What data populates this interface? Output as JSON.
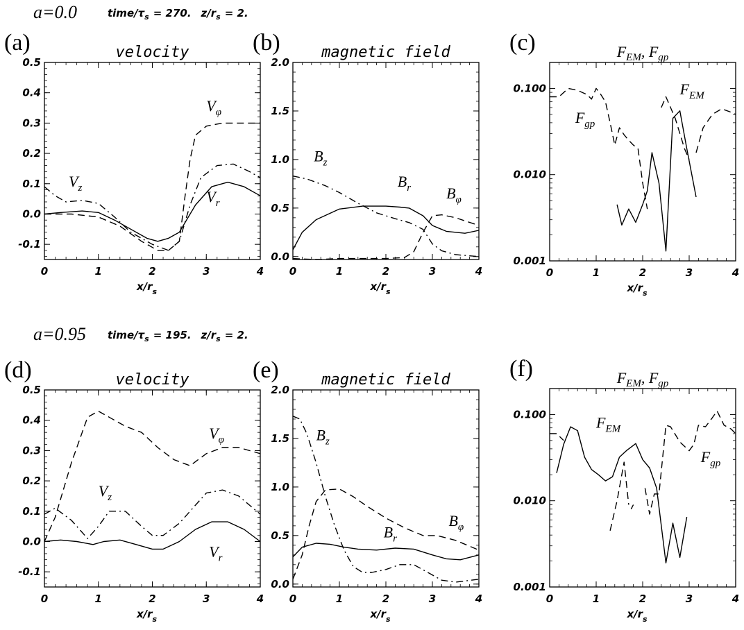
{
  "rows": [
    {
      "a_label": "a=0.0",
      "time_label": "time/τ",
      "time_value": "= 270.",
      "z_label": "z/r",
      "z_value": "= 2.",
      "sub_s": "s"
    },
    {
      "a_label": "a=0.95",
      "time_label": "time/τ",
      "time_value": "= 195.",
      "z_label": "z/r",
      "z_value": "= 2.",
      "sub_s": "s"
    }
  ],
  "chart_data": [
    {
      "panel": "(a)",
      "type": "line",
      "title": "velocity",
      "xlabel": "x/r",
      "xlabel_sub": "s",
      "xlim": [
        0,
        4
      ],
      "ylim": [
        -0.15,
        0.5
      ],
      "yscale": "linear",
      "xticks": [
        0,
        1,
        2,
        3,
        4
      ],
      "xtick_labels": [
        "0",
        "1",
        "2",
        "3",
        "4"
      ],
      "yticks": [
        -0.1,
        0,
        0.1,
        0.2,
        0.3,
        0.4,
        0.5
      ],
      "ytick_labels": [
        "-0.1",
        "0.0",
        "0.1",
        "0.2",
        "0.3",
        "0.4",
        "0.5"
      ],
      "series": [
        {
          "name": "V_φ",
          "style": "dashed",
          "x": [
            0,
            0.5,
            1.0,
            1.4,
            1.8,
            2.1,
            2.3,
            2.5,
            2.6,
            2.7,
            2.8,
            3.0,
            3.3,
            3.6,
            4.0
          ],
          "y": [
            0.0,
            0.0,
            -0.01,
            -0.04,
            -0.09,
            -0.12,
            -0.12,
            -0.09,
            0.05,
            0.18,
            0.26,
            0.29,
            0.3,
            0.3,
            0.3
          ]
        },
        {
          "name": "V_z",
          "style": "dashdot",
          "x": [
            0,
            0.2,
            0.4,
            0.7,
            1.0,
            1.3,
            1.6,
            2.0,
            2.3,
            2.5,
            2.7,
            2.9,
            3.2,
            3.5,
            3.8,
            4.0
          ],
          "y": [
            0.09,
            0.06,
            0.04,
            0.045,
            0.035,
            -0.01,
            -0.06,
            -0.1,
            -0.12,
            -0.09,
            0.03,
            0.12,
            0.16,
            0.165,
            0.14,
            0.12
          ]
        },
        {
          "name": "V_r",
          "style": "solid",
          "x": [
            0,
            0.3,
            0.7,
            1.0,
            1.3,
            1.6,
            1.9,
            2.1,
            2.3,
            2.5,
            2.8,
            3.1,
            3.4,
            3.7,
            4.0
          ],
          "y": [
            0.0,
            0.005,
            0.01,
            0.005,
            -0.02,
            -0.05,
            -0.08,
            -0.09,
            -0.08,
            -0.06,
            0.03,
            0.09,
            0.105,
            0.09,
            0.06
          ]
        }
      ],
      "annotations": [
        {
          "main": "V",
          "sub": "φ",
          "x": 3.0,
          "y": 0.34
        },
        {
          "main": "V",
          "sub": "z",
          "x": 0.45,
          "y": 0.09
        },
        {
          "main": "V",
          "sub": "r",
          "x": 3.0,
          "y": 0.04
        }
      ]
    },
    {
      "panel": "(b)",
      "type": "line",
      "title": "magnetic field",
      "xlabel": "x/r",
      "xlabel_sub": "s",
      "xlim": [
        0,
        4
      ],
      "ylim": [
        -0.03,
        2.0
      ],
      "yscale": "linear",
      "xticks": [
        0,
        1,
        2,
        3,
        4
      ],
      "xtick_labels": [
        "0",
        "1",
        "2",
        "3",
        "4"
      ],
      "yticks": [
        0,
        0.5,
        1.0,
        1.5,
        2.0
      ],
      "ytick_labels": [
        "0.0",
        "0.5",
        "1.0",
        "1.5",
        "2.0"
      ],
      "series": [
        {
          "name": "B_z",
          "style": "dashdot",
          "x": [
            0,
            0.3,
            0.7,
            1.0,
            1.4,
            1.8,
            2.2,
            2.5,
            2.8,
            3.0,
            3.2,
            3.5,
            4.0
          ],
          "y": [
            0.83,
            0.8,
            0.73,
            0.66,
            0.55,
            0.45,
            0.39,
            0.35,
            0.28,
            0.13,
            0.06,
            0.02,
            0.0
          ]
        },
        {
          "name": "B_r",
          "style": "solid",
          "x": [
            0,
            0.2,
            0.5,
            1.0,
            1.5,
            2.0,
            2.3,
            2.5,
            2.8,
            3.0,
            3.3,
            3.7,
            4.0
          ],
          "y": [
            0.07,
            0.25,
            0.38,
            0.49,
            0.52,
            0.52,
            0.51,
            0.5,
            0.42,
            0.32,
            0.26,
            0.24,
            0.27
          ]
        },
        {
          "name": "B_φ",
          "style": "dashed",
          "x": [
            0,
            0.5,
            1.0,
            1.5,
            2.0,
            2.4,
            2.6,
            2.8,
            3.0,
            3.2,
            3.5,
            4.0
          ],
          "y": [
            -0.02,
            -0.03,
            -0.02,
            -0.02,
            -0.02,
            -0.01,
            0.05,
            0.25,
            0.42,
            0.43,
            0.4,
            0.32
          ]
        }
      ],
      "annotations": [
        {
          "main": "B",
          "sub": "z",
          "x": 0.45,
          "y": 0.98
        },
        {
          "main": "B",
          "sub": "r",
          "x": 2.25,
          "y": 0.72
        },
        {
          "main": "B",
          "sub": "φ",
          "x": 3.3,
          "y": 0.6
        }
      ]
    },
    {
      "panel": "(c)",
      "type": "line",
      "title": "F",
      "title_parts": [
        {
          "main": "F",
          "sub": "EM"
        },
        {
          "main": "F",
          "sub": "gp"
        }
      ],
      "xlabel": "x/r",
      "xlabel_sub": "s",
      "xlim": [
        0,
        4
      ],
      "ylim": [
        0.001,
        0.2
      ],
      "yscale": "log",
      "xticks": [
        0,
        1,
        2,
        3,
        4
      ],
      "xtick_labels": [
        "0",
        "1",
        "2",
        "3",
        "4"
      ],
      "yticks": [
        0.001,
        0.01,
        0.1
      ],
      "ytick_labels": [
        "0.001",
        "0.010",
        "0.100"
      ],
      "series": [
        {
          "name": "F_gp",
          "style": "dashed",
          "segments": [
            {
              "x": [
                0,
                0.2,
                0.4,
                0.6,
                0.8,
                0.9,
                1.0,
                1.1,
                1.2,
                1.3,
                1.4,
                1.5,
                1.6,
                1.7,
                1.8,
                1.9,
                2.0,
                2.1
              ],
              "y": [
                0.08,
                0.08,
                0.1,
                0.095,
                0.085,
                0.075,
                0.1,
                0.085,
                0.07,
                0.04,
                0.022,
                0.035,
                0.029,
                0.025,
                0.022,
                0.02,
                0.008,
                0.004
              ]
            },
            {
              "x": [
                2.4,
                2.5,
                2.6,
                2.7,
                2.8,
                2.9,
                3.0
              ],
              "y": [
                0.06,
                0.08,
                0.06,
                0.045,
                0.03,
                0.02,
                0.015
              ]
            },
            {
              "x": [
                3.15,
                3.3,
                3.5,
                3.7,
                3.9,
                4.0
              ],
              "y": [
                0.018,
                0.035,
                0.05,
                0.058,
                0.053,
                0.05
              ]
            }
          ]
        },
        {
          "name": "F_EM",
          "style": "solid",
          "segments": [
            {
              "x": [
                1.45,
                1.55,
                1.7,
                1.85,
                2.0,
                2.1,
                2.2,
                2.35,
                2.5,
                2.65,
                2.8,
                2.95,
                3.15
              ],
              "y": [
                0.0045,
                0.0026,
                0.004,
                0.0028,
                0.0045,
                0.0065,
                0.018,
                0.008,
                0.0013,
                0.045,
                0.055,
                0.02,
                0.0055
              ]
            }
          ]
        }
      ],
      "annotations": [
        {
          "main": "F",
          "sub": "EM",
          "x": 2.8,
          "y": 0.085
        },
        {
          "main": "F",
          "sub": "gp",
          "x": 0.55,
          "y": 0.04
        }
      ]
    },
    {
      "panel": "(d)",
      "type": "line",
      "title": "velocity",
      "xlabel": "x/r",
      "xlabel_sub": "s",
      "xlim": [
        0,
        4
      ],
      "ylim": [
        -0.15,
        0.5
      ],
      "yscale": "linear",
      "xticks": [
        0,
        1,
        2,
        3,
        4
      ],
      "xtick_labels": [
        "0",
        "1",
        "2",
        "3",
        "4"
      ],
      "yticks": [
        -0.1,
        0,
        0.1,
        0.2,
        0.3,
        0.4,
        0.5
      ],
      "ytick_labels": [
        "-0.1",
        "0.0",
        "0.1",
        "0.2",
        "0.3",
        "0.4",
        "0.5"
      ],
      "series": [
        {
          "name": "V_φ",
          "style": "dashed",
          "x": [
            0,
            0.2,
            0.5,
            0.8,
            1.0,
            1.2,
            1.5,
            1.8,
            2.1,
            2.4,
            2.7,
            3.0,
            3.3,
            3.6,
            4.0
          ],
          "y": [
            0.0,
            0.08,
            0.26,
            0.41,
            0.43,
            0.41,
            0.38,
            0.36,
            0.31,
            0.27,
            0.25,
            0.29,
            0.31,
            0.31,
            0.29
          ]
        },
        {
          "name": "V_z",
          "style": "dashdot",
          "x": [
            0,
            0.2,
            0.5,
            0.8,
            1.0,
            1.2,
            1.5,
            1.8,
            2.0,
            2.2,
            2.5,
            2.8,
            3.0,
            3.3,
            3.6,
            4.0
          ],
          "y": [
            0.09,
            0.11,
            0.07,
            0.01,
            0.05,
            0.1,
            0.1,
            0.05,
            0.02,
            0.02,
            0.06,
            0.12,
            0.16,
            0.17,
            0.15,
            0.09
          ]
        },
        {
          "name": "V_r",
          "style": "solid",
          "x": [
            0,
            0.3,
            0.6,
            0.9,
            1.1,
            1.4,
            1.7,
            2.0,
            2.2,
            2.5,
            2.8,
            3.1,
            3.4,
            3.7,
            4.0
          ],
          "y": [
            0.0,
            0.005,
            0.0,
            -0.01,
            0.0,
            0.005,
            -0.01,
            -0.025,
            -0.025,
            0.0,
            0.04,
            0.065,
            0.065,
            0.04,
            0.0
          ]
        }
      ],
      "annotations": [
        {
          "main": "V",
          "sub": "φ",
          "x": 3.05,
          "y": 0.34
        },
        {
          "main": "V",
          "sub": "z",
          "x": 1.0,
          "y": 0.15
        },
        {
          "main": "V",
          "sub": "r",
          "x": 3.05,
          "y": -0.05
        }
      ]
    },
    {
      "panel": "(e)",
      "type": "line",
      "title": "magnetic field",
      "xlabel": "x/r",
      "xlabel_sub": "s",
      "xlim": [
        0,
        4
      ],
      "ylim": [
        -0.03,
        2.0
      ],
      "yscale": "linear",
      "xticks": [
        0,
        1,
        2,
        3,
        4
      ],
      "xtick_labels": [
        "0",
        "1",
        "2",
        "3",
        "4"
      ],
      "yticks": [
        0,
        0.5,
        1.0,
        1.5,
        2.0
      ],
      "ytick_labels": [
        "0.0",
        "0.5",
        "1.0",
        "1.5",
        "2.0"
      ],
      "series": [
        {
          "name": "B_z",
          "style": "dashdot",
          "x": [
            0,
            0.15,
            0.3,
            0.5,
            0.7,
            0.9,
            1.1,
            1.3,
            1.5,
            1.7,
            2.0,
            2.3,
            2.6,
            2.9,
            3.2,
            3.5,
            4.0
          ],
          "y": [
            1.73,
            1.7,
            1.55,
            1.25,
            0.9,
            0.6,
            0.35,
            0.18,
            0.12,
            0.12,
            0.15,
            0.2,
            0.2,
            0.12,
            0.04,
            0.02,
            0.05
          ]
        },
        {
          "name": "B_φ",
          "style": "dashed",
          "x": [
            0,
            0.2,
            0.35,
            0.5,
            0.7,
            1.0,
            1.3,
            1.6,
            2.0,
            2.4,
            2.8,
            3.1,
            3.5,
            4.0
          ],
          "y": [
            0.05,
            0.3,
            0.6,
            0.85,
            0.97,
            0.98,
            0.9,
            0.8,
            0.68,
            0.58,
            0.5,
            0.5,
            0.45,
            0.35
          ]
        },
        {
          "name": "B_r",
          "style": "solid",
          "x": [
            0,
            0.2,
            0.5,
            0.8,
            1.1,
            1.4,
            1.8,
            2.2,
            2.6,
            3.0,
            3.3,
            3.6,
            4.0
          ],
          "y": [
            0.28,
            0.38,
            0.42,
            0.41,
            0.38,
            0.36,
            0.35,
            0.37,
            0.36,
            0.3,
            0.26,
            0.25,
            0.3
          ]
        }
      ],
      "annotations": [
        {
          "main": "B",
          "sub": "z",
          "x": 0.5,
          "y": 1.48
        },
        {
          "main": "B",
          "sub": "r",
          "x": 1.95,
          "y": 0.48
        },
        {
          "main": "B",
          "sub": "φ",
          "x": 3.35,
          "y": 0.6
        }
      ]
    },
    {
      "panel": "(f)",
      "type": "line",
      "title": "F",
      "title_parts": [
        {
          "main": "F",
          "sub": "EM"
        },
        {
          "main": "F",
          "sub": "gp"
        }
      ],
      "xlabel": "x/r",
      "xlabel_sub": "s",
      "xlim": [
        0,
        4
      ],
      "ylim": [
        0.001,
        0.2
      ],
      "yscale": "log",
      "xticks": [
        0,
        1,
        2,
        3,
        4
      ],
      "xtick_labels": [
        "0",
        "1",
        "2",
        "3",
        "4"
      ],
      "yticks": [
        0.001,
        0.01,
        0.1
      ],
      "ytick_labels": [
        "0.001",
        "0.010",
        "0.100"
      ],
      "series": [
        {
          "name": "F_gp",
          "style": "dashed",
          "segments": [
            {
              "x": [
                0,
                0.15,
                0.3
              ],
              "y": [
                0.06,
                0.06,
                0.05
              ]
            },
            {
              "x": [
                1.3,
                1.45,
                1.6,
                1.7
              ],
              "y": [
                0.0045,
                0.01,
                0.028,
                0.009
              ]
            },
            {
              "x": [
                1.75,
                1.8
              ],
              "y": [
                0.008,
                0.009
              ]
            },
            {
              "x": [
                2.05,
                2.15,
                2.25,
                2.35,
                2.5,
                2.6,
                2.8,
                3.0,
                3.1,
                3.2,
                3.35,
                3.5,
                3.6,
                3.75,
                3.9,
                4.0
              ],
              "y": [
                0.014,
                0.007,
                0.012,
                0.012,
                0.075,
                0.072,
                0.048,
                0.038,
                0.045,
                0.075,
                0.072,
                0.092,
                0.11,
                0.075,
                0.068,
                0.06
              ]
            }
          ]
        },
        {
          "name": "F_EM",
          "style": "solid",
          "segments": [
            {
              "x": [
                0.15,
                0.3,
                0.45,
                0.6,
                0.75,
                0.9,
                1.05,
                1.2,
                1.35,
                1.5,
                1.65,
                1.85,
                2.0,
                2.15,
                2.3,
                2.5,
                2.65,
                2.8,
                2.95
              ],
              "y": [
                0.021,
                0.045,
                0.072,
                0.065,
                0.032,
                0.023,
                0.02,
                0.017,
                0.019,
                0.032,
                0.038,
                0.046,
                0.03,
                0.024,
                0.014,
                0.0019,
                0.0055,
                0.0022,
                0.0065
              ]
            }
          ]
        }
      ],
      "annotations": [
        {
          "main": "F",
          "sub": "EM",
          "x": 1.0,
          "y": 0.07
        },
        {
          "main": "F",
          "sub": "gp",
          "x": 3.25,
          "y": 0.028
        }
      ]
    }
  ]
}
